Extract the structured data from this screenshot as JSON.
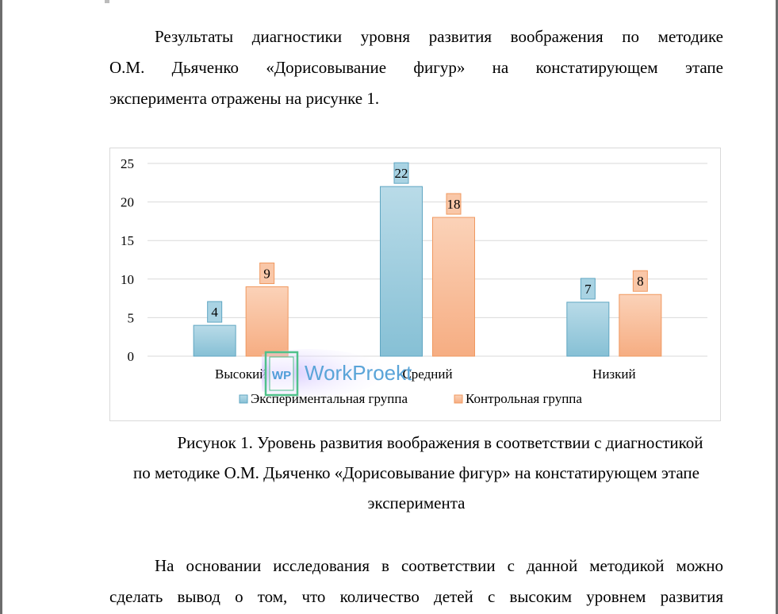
{
  "intro": {
    "lines": [
      "Результаты диагностики уровня развития воображения по методике",
      "О.М. Дьяченко «Дорисовывание фигур» на констатирующем этапе",
      "эксперимента отражены на рисунке 1."
    ]
  },
  "chart_data": {
    "type": "bar",
    "categories": [
      "Высокий",
      "Средний",
      "Низкий"
    ],
    "series": [
      {
        "name": "Экспериментальная группа",
        "values": [
          4,
          22,
          7
        ],
        "color": "#92c6d9"
      },
      {
        "name": "Контрольная группа",
        "values": [
          9,
          18,
          8
        ],
        "color": "#f8b994"
      }
    ],
    "ylim": [
      0,
      25
    ],
    "yticks": [
      "0",
      "5",
      "10",
      "15",
      "20",
      "25"
    ],
    "grid": true,
    "legend": "bottom",
    "title": "",
    "xlabel": "",
    "ylabel": ""
  },
  "caption": {
    "lines": [
      "Рисунок 1. Уровень развития воображения в соответствии с диагностикой",
      "по методике О.М. Дьяченко «Дорисовывание фигур» на констатирующем этапе",
      "эксперимента"
    ]
  },
  "conclusion": {
    "lines": [
      "На основании исследования в соответствии с данной методикой можно",
      "сделать вывод о том, что количество детей с высоким уровнем развития"
    ]
  },
  "watermark": {
    "logo_text": "WP",
    "brand": "WorkProekt"
  }
}
